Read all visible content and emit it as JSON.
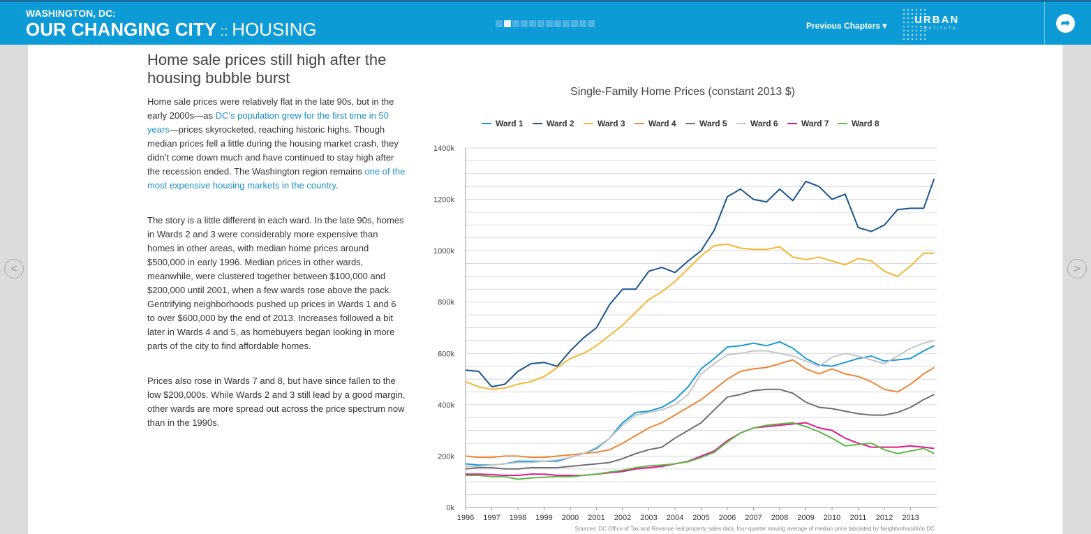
{
  "header": {
    "kicker": "WASHINGTON, DC:",
    "title_main": "OUR CHANGING CITY",
    "title_sep": " :: ",
    "title_section": "HOUSING",
    "previous_chapters": "Previous Chapters ▾",
    "logo_word": "URBAN",
    "logo_sub": "INSTITUTE",
    "progress_dots": 12,
    "active_dot": 2,
    "share_icon": "➦"
  },
  "nav": {
    "prev_arrow": "<",
    "next_arrow": ">"
  },
  "article": {
    "headline": "Home sale prices still high after the housing bubble burst",
    "p1": {
      "t1": "Home sale prices were relatively flat in the late 90s, but in the early 2000s—as ",
      "link1": "DC’s population grew for the first time in 50 years",
      "t2": "—prices skyrocketed, reaching historic highs. Though median prices fell a little during the housing market crash, they didn’t come down much and have continued to stay high after the recession ended. The Washington region remains ",
      "link2": "one of the most expensive housing markets in the country",
      "t3": "."
    },
    "p2": "The story is a little different in each ward. In the late 90s, homes in Wards 2 and 3 were considerably more expensive than homes in other areas, with median home prices around $500,000 in early 1996. Median prices in other wards, meanwhile, were clustered together between $100,000 and $200,000 until 2001, when a few wards rose above the pack. Gentrifying neighborhoods pushed up prices in Wards 1 and 6 to over $600,000 by the end of 2013. Increases followed a bit later in Wards 4 and 5, as homebuyers began looking in more parts of the city to find affordable homes.",
    "p3": "Prices also rose in Wards 7 and 8, but have since fallen to the low $200,000s. While Wards 2 and 3 still lead by a good margin, other wards are more spread out across the price spectrum now than in the 1990s."
  },
  "chart_data": {
    "type": "line",
    "title": "Single-Family Home Prices (constant 2013 $)",
    "source": "Sources: DC Office of Tax and Revenue real property sales data, four-quarter moving average of median price tabulated by NeighborhoodInfo DC.",
    "x": [
      1996,
      1996.5,
      1997,
      1997.5,
      1998,
      1998.5,
      1999,
      1999.5,
      2000,
      2000.5,
      2001,
      2001.5,
      2002,
      2002.5,
      2003,
      2003.5,
      2004,
      2004.5,
      2005,
      2005.5,
      2006,
      2006.5,
      2007,
      2007.5,
      2008,
      2008.5,
      2009,
      2009.5,
      2010,
      2010.5,
      2011,
      2011.5,
      2012,
      2012.5,
      2013,
      2013.5,
      2013.9
    ],
    "xticks": [
      1996,
      1997,
      1998,
      1999,
      2000,
      2001,
      2002,
      2003,
      2004,
      2005,
      2006,
      2007,
      2008,
      2009,
      2010,
      2011,
      2012,
      2013
    ],
    "ylim": [
      0,
      1400000
    ],
    "yticks": [
      0,
      200000,
      400000,
      600000,
      800000,
      1000000,
      1200000,
      1400000
    ],
    "ytick_labels": [
      "0k",
      "200k",
      "400k",
      "600k",
      "800k",
      "1000k",
      "1200k",
      "1400k"
    ],
    "legend_position": "top",
    "grid": true,
    "series": [
      {
        "name": "Ward 1",
        "color": "#1a9ad6",
        "values": [
          170000,
          165000,
          165000,
          170000,
          180000,
          180000,
          180000,
          180000,
          195000,
          210000,
          230000,
          270000,
          330000,
          370000,
          375000,
          390000,
          420000,
          470000,
          540000,
          580000,
          625000,
          630000,
          640000,
          630000,
          645000,
          620000,
          580000,
          555000,
          550000,
          565000,
          580000,
          590000,
          570000,
          575000,
          580000,
          610000,
          630000
        ]
      },
      {
        "name": "Ward 2",
        "color": "#17548e",
        "values": [
          535000,
          530000,
          470000,
          480000,
          530000,
          560000,
          565000,
          550000,
          610000,
          660000,
          700000,
          790000,
          850000,
          850000,
          920000,
          935000,
          915000,
          960000,
          1000000,
          1080000,
          1210000,
          1240000,
          1200000,
          1190000,
          1240000,
          1195000,
          1270000,
          1250000,
          1200000,
          1220000,
          1090000,
          1075000,
          1100000,
          1160000,
          1165000,
          1165000,
          1280000
        ]
      },
      {
        "name": "Ward 3",
        "color": "#f5b52f",
        "values": [
          490000,
          470000,
          460000,
          465000,
          480000,
          490000,
          510000,
          545000,
          580000,
          600000,
          630000,
          670000,
          710000,
          760000,
          810000,
          840000,
          880000,
          930000,
          980000,
          1020000,
          1025000,
          1010000,
          1005000,
          1005000,
          1015000,
          975000,
          965000,
          975000,
          960000,
          945000,
          970000,
          960000,
          920000,
          900000,
          940000,
          990000,
          990000
        ]
      },
      {
        "name": "Ward 4",
        "color": "#ef8535",
        "values": [
          200000,
          195000,
          195000,
          200000,
          200000,
          195000,
          195000,
          200000,
          205000,
          210000,
          215000,
          225000,
          250000,
          280000,
          310000,
          330000,
          360000,
          390000,
          420000,
          460000,
          500000,
          530000,
          540000,
          545000,
          560000,
          575000,
          540000,
          520000,
          540000,
          520000,
          510000,
          490000,
          460000,
          450000,
          480000,
          520000,
          545000
        ]
      },
      {
        "name": "Ward 5",
        "color": "#6d6e71",
        "values": [
          150000,
          155000,
          155000,
          150000,
          150000,
          155000,
          155000,
          155000,
          160000,
          165000,
          170000,
          175000,
          190000,
          210000,
          225000,
          235000,
          270000,
          300000,
          330000,
          380000,
          430000,
          440000,
          455000,
          460000,
          460000,
          445000,
          410000,
          390000,
          385000,
          375000,
          365000,
          360000,
          360000,
          370000,
          390000,
          420000,
          440000
        ]
      },
      {
        "name": "Ward 6",
        "color": "#c5c6c8",
        "values": [
          160000,
          160000,
          165000,
          170000,
          175000,
          175000,
          180000,
          185000,
          195000,
          210000,
          235000,
          270000,
          320000,
          360000,
          370000,
          380000,
          400000,
          440000,
          520000,
          560000,
          595000,
          600000,
          610000,
          610000,
          600000,
          590000,
          570000,
          550000,
          585000,
          600000,
          590000,
          575000,
          560000,
          590000,
          620000,
          640000,
          650000
        ]
      },
      {
        "name": "Ward 7",
        "color": "#e3168c",
        "values": [
          130000,
          130000,
          128000,
          125000,
          125000,
          130000,
          130000,
          125000,
          125000,
          125000,
          130000,
          135000,
          140000,
          150000,
          155000,
          160000,
          170000,
          180000,
          200000,
          220000,
          260000,
          290000,
          310000,
          315000,
          320000,
          325000,
          330000,
          310000,
          300000,
          270000,
          250000,
          235000,
          235000,
          235000,
          240000,
          235000,
          230000
        ]
      },
      {
        "name": "Ward 8",
        "color": "#5bb947",
        "values": [
          125000,
          125000,
          120000,
          120000,
          110000,
          115000,
          118000,
          120000,
          120000,
          125000,
          130000,
          138000,
          145000,
          155000,
          162000,
          165000,
          170000,
          178000,
          195000,
          215000,
          255000,
          290000,
          310000,
          320000,
          325000,
          330000,
          315000,
          295000,
          270000,
          240000,
          245000,
          250000,
          225000,
          210000,
          220000,
          230000,
          210000
        ]
      }
    ]
  }
}
